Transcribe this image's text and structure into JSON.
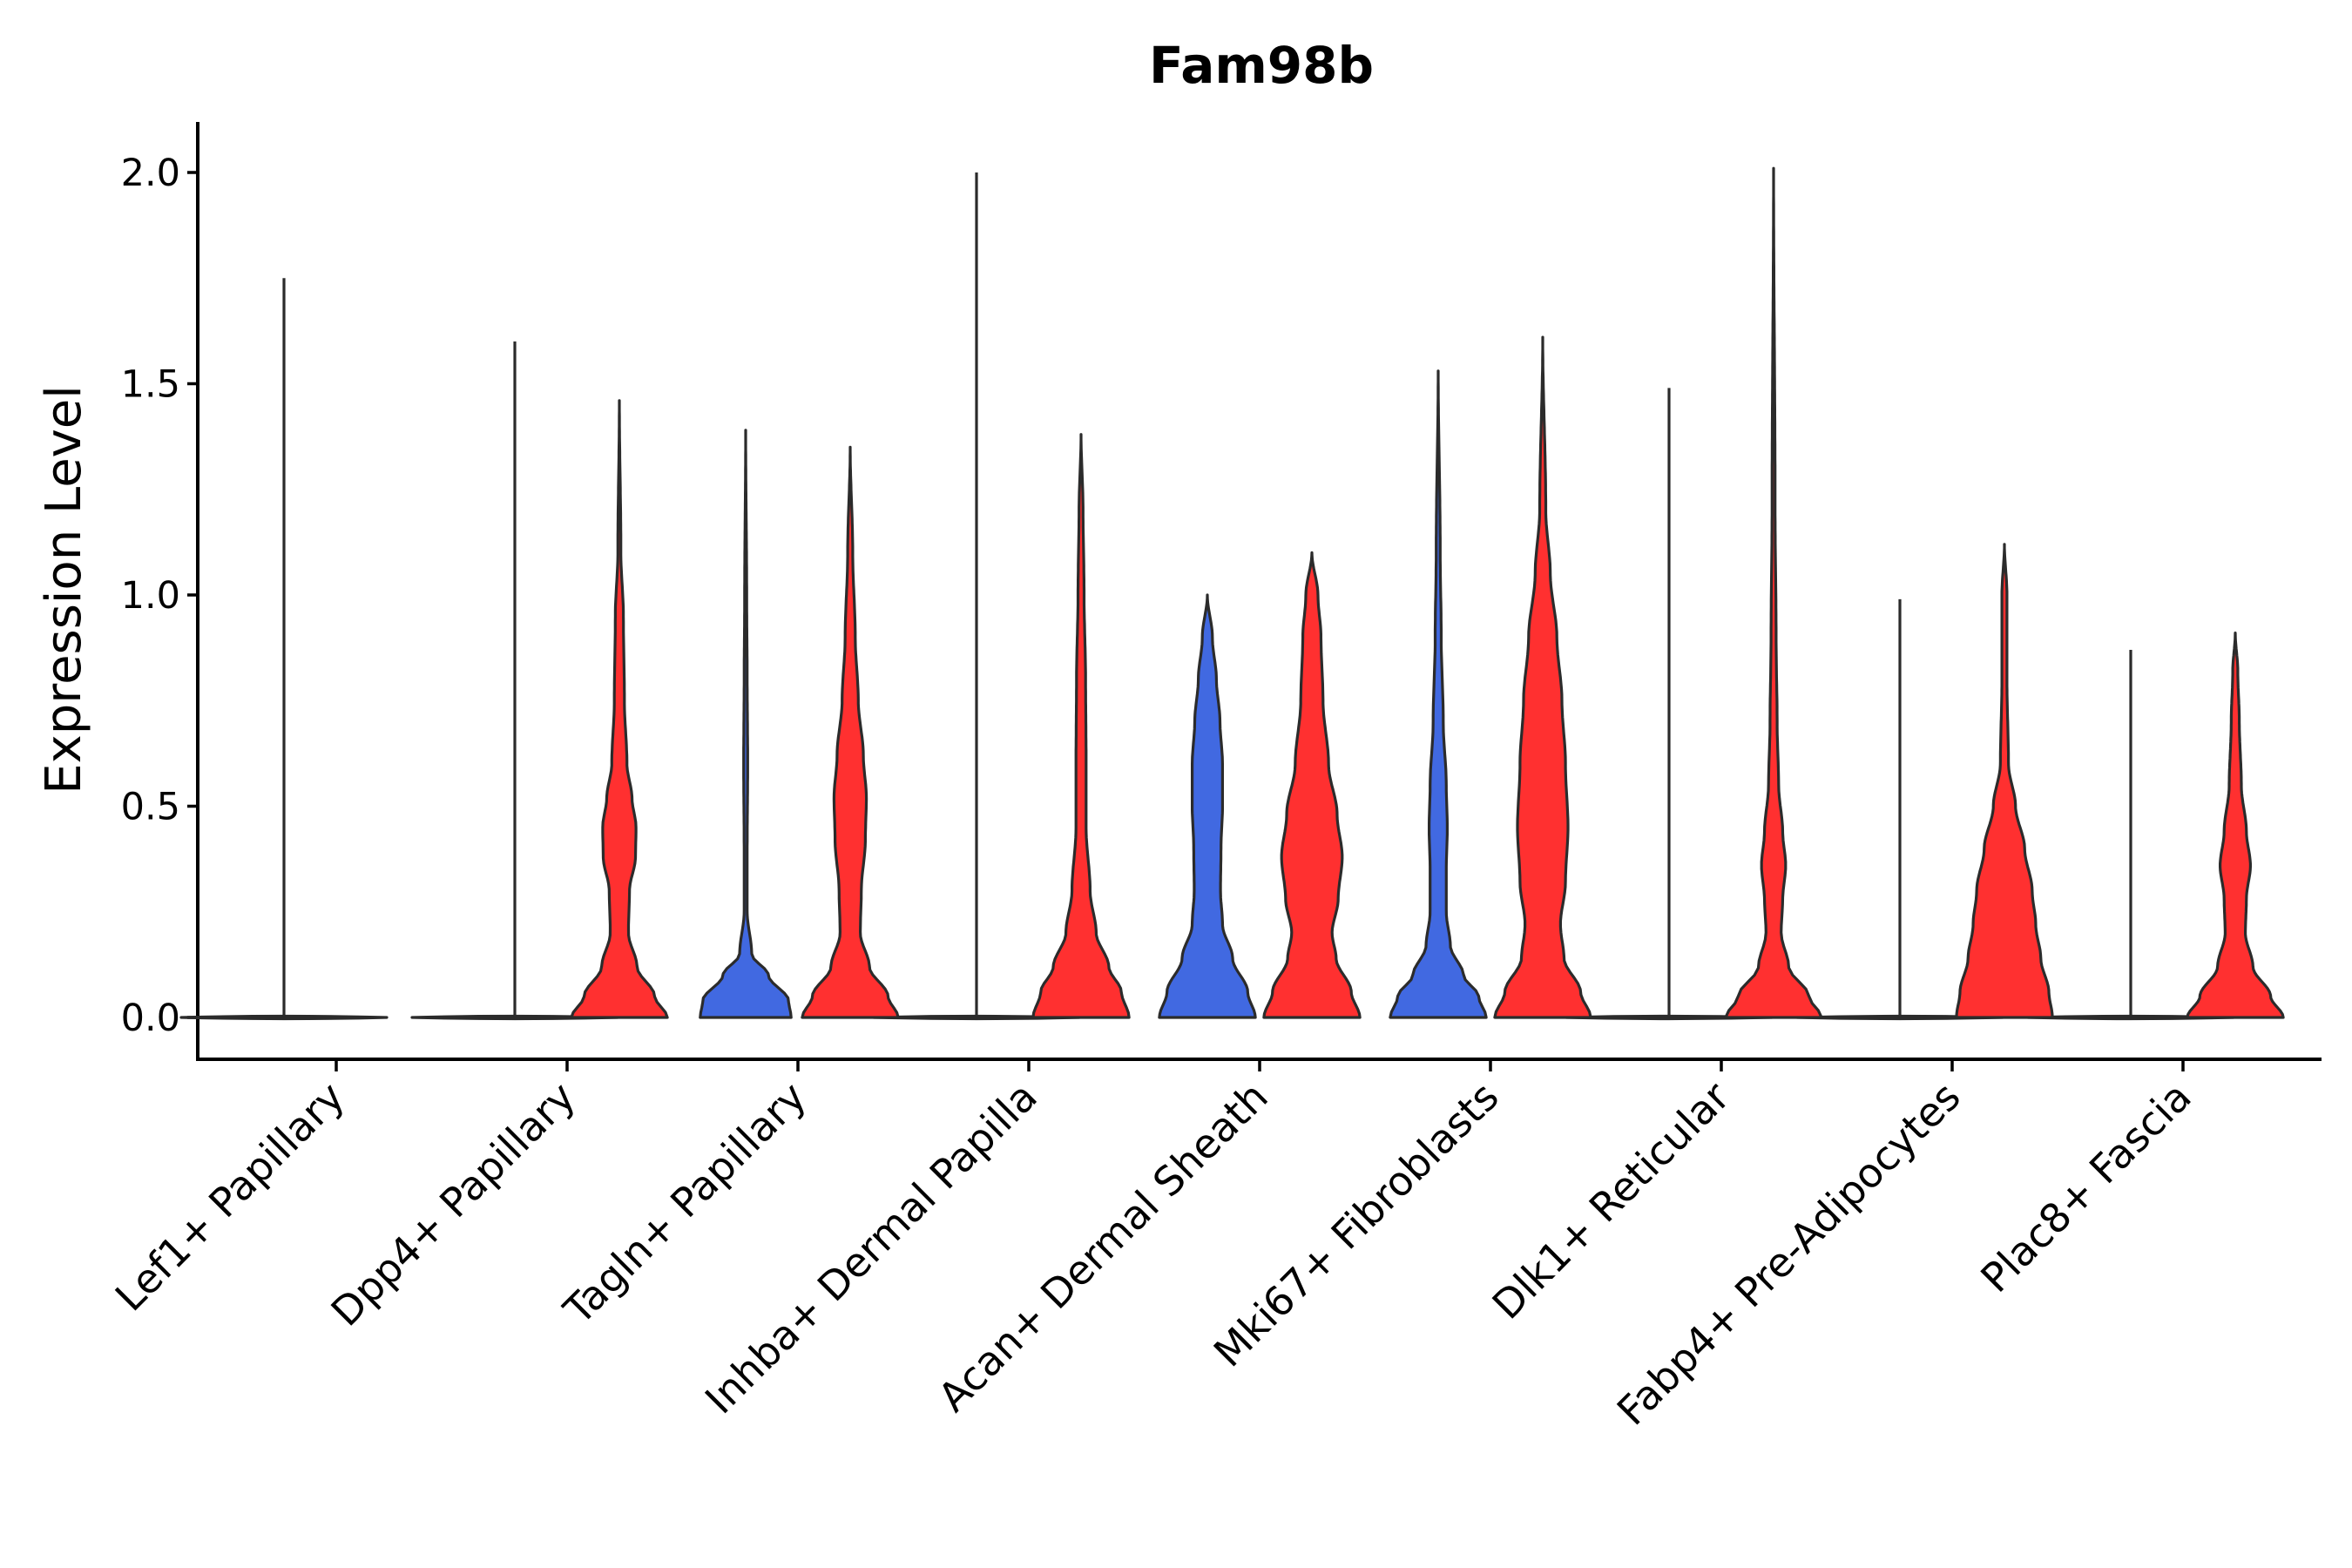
{
  "chart_data": {
    "type": "violin",
    "title": "Fam98b",
    "xlabel": "",
    "ylabel": "Expression Level",
    "ylim": [
      -0.1,
      2.1
    ],
    "yticks": [
      "0.0",
      "0.5",
      "1.0",
      "1.5",
      "2.0"
    ],
    "grid": false,
    "legend": "none",
    "categories": [
      "Lef1+ Papillary",
      "Dpp4+ Papillary",
      "Tagln+ Papillary",
      "Inhba+ Dermal Papilla",
      "Acan+ Dermal Sheath",
      "Mki67+ Fibroblasts",
      "Dlk1+ Reticular",
      "Fabp4+ Pre-Adipocytes",
      "Plac8+ Fascia"
    ],
    "series": [
      {
        "name": "group-blue",
        "color": "#4169E1",
        "violins": [
          {
            "max": 1.75,
            "mode": "zero"
          },
          {
            "max": 1.6,
            "mode": "zero"
          },
          {
            "max": 1.39,
            "mode": "shape",
            "width": [
              [
                0,
                0.9
              ],
              [
                0.04,
                0.85
              ],
              [
                0.1,
                0.45
              ],
              [
                0.15,
                0.12
              ],
              [
                0.25,
                0.03
              ],
              [
                0.4,
                0.03
              ],
              [
                0.6,
                0.04
              ],
              [
                0.8,
                0.03
              ],
              [
                1.0,
                0.02
              ],
              [
                1.39,
                0.0
              ]
            ]
          },
          {
            "max": 2.0,
            "mode": "zero"
          },
          {
            "max": 1.0,
            "mode": "shape",
            "width": [
              [
                0,
                0.95
              ],
              [
                0.06,
                0.8
              ],
              [
                0.14,
                0.5
              ],
              [
                0.22,
                0.3
              ],
              [
                0.3,
                0.26
              ],
              [
                0.4,
                0.27
              ],
              [
                0.5,
                0.3
              ],
              [
                0.6,
                0.3
              ],
              [
                0.7,
                0.25
              ],
              [
                0.8,
                0.18
              ],
              [
                0.9,
                0.1
              ],
              [
                1.0,
                0.0
              ]
            ]
          },
          {
            "max": 1.53,
            "mode": "shape",
            "width": [
              [
                0,
                0.95
              ],
              [
                0.05,
                0.8
              ],
              [
                0.1,
                0.5
              ],
              [
                0.17,
                0.24
              ],
              [
                0.25,
                0.16
              ],
              [
                0.35,
                0.16
              ],
              [
                0.45,
                0.18
              ],
              [
                0.55,
                0.16
              ],
              [
                0.7,
                0.1
              ],
              [
                0.9,
                0.06
              ],
              [
                1.1,
                0.04
              ],
              [
                1.53,
                0.0
              ]
            ]
          },
          {
            "max": 1.49,
            "mode": "zero"
          },
          {
            "max": 0.99,
            "mode": "zero"
          },
          {
            "max": 0.87,
            "mode": "zero"
          }
        ]
      },
      {
        "name": "group-red",
        "color": "#FF3030",
        "violins": [
          null,
          {
            "max": 1.46,
            "mode": "shape",
            "width": [
              [
                0,
                0.95
              ],
              [
                0.05,
                0.7
              ],
              [
                0.12,
                0.35
              ],
              [
                0.2,
                0.18
              ],
              [
                0.3,
                0.2
              ],
              [
                0.38,
                0.32
              ],
              [
                0.45,
                0.33
              ],
              [
                0.52,
                0.25
              ],
              [
                0.6,
                0.15
              ],
              [
                0.75,
                0.1
              ],
              [
                0.95,
                0.08
              ],
              [
                1.1,
                0.03
              ],
              [
                1.46,
                0.0
              ]
            ]
          },
          {
            "max": 1.35,
            "mode": "shape",
            "width": [
              [
                0,
                0.95
              ],
              [
                0.05,
                0.75
              ],
              [
                0.12,
                0.38
              ],
              [
                0.2,
                0.2
              ],
              [
                0.3,
                0.22
              ],
              [
                0.42,
                0.3
              ],
              [
                0.52,
                0.32
              ],
              [
                0.62,
                0.26
              ],
              [
                0.75,
                0.16
              ],
              [
                0.9,
                0.1
              ],
              [
                1.1,
                0.05
              ],
              [
                1.35,
                0.0
              ]
            ]
          },
          {
            "max": 1.38,
            "mode": "shape",
            "width": [
              [
                0,
                0.95
              ],
              [
                0.06,
                0.8
              ],
              [
                0.12,
                0.55
              ],
              [
                0.2,
                0.3
              ],
              [
                0.3,
                0.18
              ],
              [
                0.45,
                0.1
              ],
              [
                0.6,
                0.1
              ],
              [
                0.8,
                0.09
              ],
              [
                1.0,
                0.06
              ],
              [
                1.2,
                0.04
              ],
              [
                1.38,
                0.0
              ]
            ]
          },
          {
            "max": 1.1,
            "mode": "shape",
            "width": [
              [
                0,
                0.95
              ],
              [
                0.06,
                0.78
              ],
              [
                0.14,
                0.48
              ],
              [
                0.2,
                0.4
              ],
              [
                0.28,
                0.52
              ],
              [
                0.38,
                0.6
              ],
              [
                0.48,
                0.5
              ],
              [
                0.6,
                0.33
              ],
              [
                0.75,
                0.22
              ],
              [
                0.9,
                0.18
              ],
              [
                1.0,
                0.12
              ],
              [
                1.1,
                0.0
              ]
            ]
          },
          {
            "max": 1.61,
            "mode": "shape",
            "width": [
              [
                0,
                0.95
              ],
              [
                0.06,
                0.75
              ],
              [
                0.14,
                0.42
              ],
              [
                0.22,
                0.35
              ],
              [
                0.32,
                0.45
              ],
              [
                0.45,
                0.5
              ],
              [
                0.6,
                0.45
              ],
              [
                0.75,
                0.38
              ],
              [
                0.9,
                0.28
              ],
              [
                1.05,
                0.15
              ],
              [
                1.2,
                0.06
              ],
              [
                1.61,
                0.0
              ]
            ]
          },
          {
            "max": 2.01,
            "mode": "shape",
            "width": [
              [
                0,
                0.95
              ],
              [
                0.05,
                0.7
              ],
              [
                0.12,
                0.3
              ],
              [
                0.2,
                0.15
              ],
              [
                0.28,
                0.18
              ],
              [
                0.36,
                0.24
              ],
              [
                0.44,
                0.18
              ],
              [
                0.55,
                0.1
              ],
              [
                0.7,
                0.07
              ],
              [
                0.9,
                0.05
              ],
              [
                1.2,
                0.03
              ],
              [
                2.01,
                0.0
              ]
            ]
          },
          {
            "max": 1.12,
            "mode": "shape",
            "width": [
              [
                0,
                0.95
              ],
              [
                0.06,
                0.88
              ],
              [
                0.14,
                0.72
              ],
              [
                0.22,
                0.62
              ],
              [
                0.3,
                0.55
              ],
              [
                0.4,
                0.4
              ],
              [
                0.5,
                0.22
              ],
              [
                0.6,
                0.08
              ],
              [
                0.8,
                0.05
              ],
              [
                1.0,
                0.05
              ],
              [
                1.12,
                0.0
              ]
            ]
          },
          {
            "max": 0.91,
            "mode": "shape",
            "width": [
              [
                0,
                0.95
              ],
              [
                0.05,
                0.7
              ],
              [
                0.12,
                0.35
              ],
              [
                0.2,
                0.2
              ],
              [
                0.28,
                0.22
              ],
              [
                0.36,
                0.3
              ],
              [
                0.44,
                0.22
              ],
              [
                0.55,
                0.12
              ],
              [
                0.7,
                0.08
              ],
              [
                0.82,
                0.05
              ],
              [
                0.91,
                0.0
              ]
            ]
          }
        ]
      }
    ]
  }
}
